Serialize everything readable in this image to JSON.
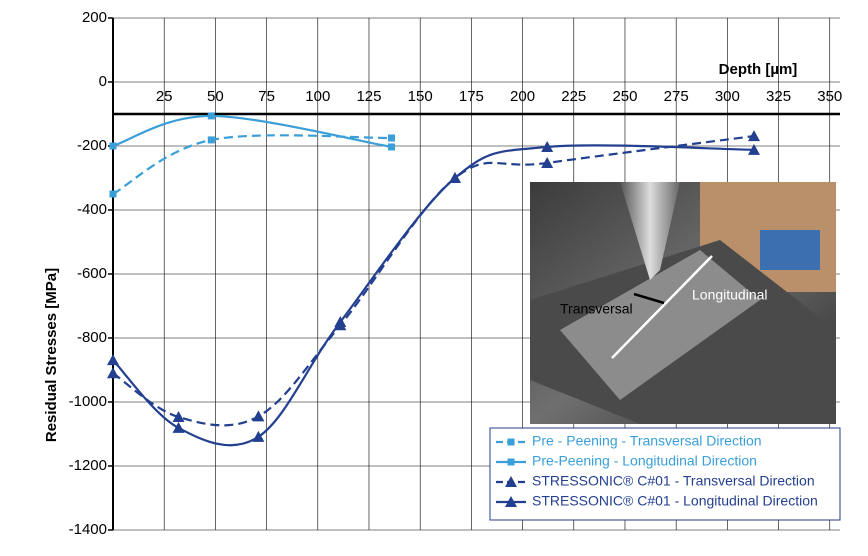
{
  "chart_data": {
    "type": "line",
    "x_label": "Depth [µm]",
    "y_label": "Residual Stresses [MPa]",
    "xlim": [
      0,
      355
    ],
    "ylim": [
      -1400,
      200
    ],
    "xticks": [
      25,
      50,
      75,
      100,
      125,
      150,
      175,
      200,
      225,
      250,
      275,
      300,
      325,
      350
    ],
    "yticks": [
      -1400,
      -1200,
      -1000,
      -800,
      -600,
      -400,
      -200,
      0,
      200
    ],
    "x_axis_at": -100,
    "grid": true,
    "legend": "lower right",
    "annotations": [
      "Transversal",
      "Longitudinal"
    ],
    "series": [
      {
        "name": "Pre - Peening - Transversal Direction",
        "color": "#3a9fd8",
        "dashed": true,
        "marker": "square",
        "x": [
          0,
          48,
          136
        ],
        "values": [
          -350,
          -181,
          -175
        ]
      },
      {
        "name": "Pre-Peening - Longitudinal Direction",
        "color": "#3a9fd8",
        "dashed": false,
        "marker": "square",
        "x": [
          0,
          48,
          136
        ],
        "values": [
          -200,
          -106,
          -203
        ]
      },
      {
        "name": "STRESSONIC® C#01 - Transversal Direction",
        "color": "#233f8f",
        "dashed": true,
        "marker": "triangle",
        "x": [
          0,
          32,
          71,
          111,
          167,
          212,
          313
        ],
        "values": [
          -910,
          -1047,
          -1045,
          -760,
          -300,
          -253,
          -169
        ]
      },
      {
        "name": "STRESSONIC® C#01 - Longitudinal Direction",
        "color": "#233f8f",
        "dashed": false,
        "marker": "triangle",
        "x": [
          0,
          32,
          71,
          111,
          167,
          212,
          313
        ],
        "values": [
          -869,
          -1081,
          -1109,
          -750,
          -300,
          -203,
          -212
        ]
      }
    ]
  }
}
